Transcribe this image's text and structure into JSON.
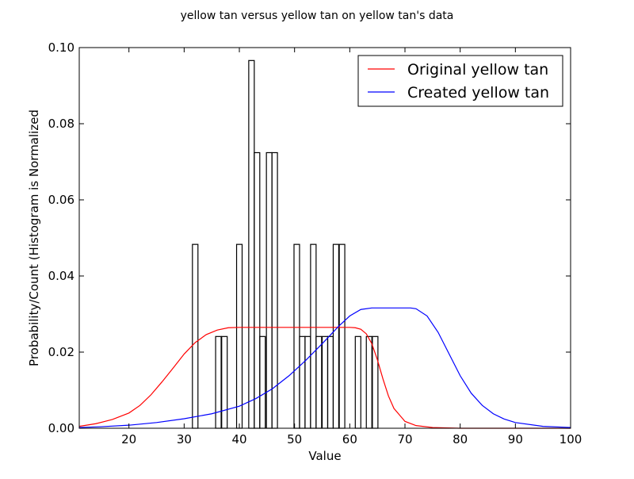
{
  "chart_data": {
    "type": "bar",
    "title": "yellow tan versus yellow tan on yellow tan's data",
    "xlabel": "Value",
    "ylabel": "Probability/Count (Histogram is Normalized",
    "xlim": [
      11,
      100
    ],
    "ylim": [
      0,
      0.1
    ],
    "xticks": [
      20,
      30,
      40,
      50,
      60,
      70,
      80,
      90,
      100
    ],
    "yticks": [
      "0.00",
      "0.02",
      "0.04",
      "0.06",
      "0.08",
      "0.10"
    ],
    "legend_position": "upper-right",
    "histogram": {
      "bin_width": 1.0,
      "bins": [
        {
          "x": 31.5,
          "value": 0.0483
        },
        {
          "x": 35.7,
          "value": 0.0241
        },
        {
          "x": 36.8,
          "value": 0.0241
        },
        {
          "x": 39.5,
          "value": 0.0483
        },
        {
          "x": 41.7,
          "value": 0.0966
        },
        {
          "x": 42.7,
          "value": 0.0724
        },
        {
          "x": 43.7,
          "value": 0.0241
        },
        {
          "x": 44.9,
          "value": 0.0724
        },
        {
          "x": 45.9,
          "value": 0.0724
        },
        {
          "x": 49.9,
          "value": 0.0483
        },
        {
          "x": 50.9,
          "value": 0.0241
        },
        {
          "x": 51.9,
          "value": 0.0241
        },
        {
          "x": 52.9,
          "value": 0.0483
        },
        {
          "x": 53.9,
          "value": 0.0241
        },
        {
          "x": 55.0,
          "value": 0.0241
        },
        {
          "x": 56.0,
          "value": 0.0241
        },
        {
          "x": 57.0,
          "value": 0.0483
        },
        {
          "x": 58.1,
          "value": 0.0483
        },
        {
          "x": 61.0,
          "value": 0.0241
        },
        {
          "x": 63.0,
          "value": 0.0241
        },
        {
          "x": 64.1,
          "value": 0.0241
        }
      ]
    },
    "series": [
      {
        "name": "Original yellow tan",
        "color": "#ff0000",
        "x": [
          11,
          14,
          17,
          20,
          22,
          24,
          26,
          28,
          30,
          32,
          34,
          36,
          38,
          40,
          42,
          44,
          50,
          55,
          60,
          61,
          62,
          63,
          64,
          65,
          66,
          67,
          68,
          70,
          72,
          75,
          80,
          90,
          100
        ],
        "y": [
          0.0005,
          0.0012,
          0.0023,
          0.004,
          0.006,
          0.0088,
          0.0122,
          0.0158,
          0.0195,
          0.0225,
          0.0246,
          0.0258,
          0.0264,
          0.0265,
          0.0265,
          0.0265,
          0.0265,
          0.0265,
          0.0265,
          0.0264,
          0.026,
          0.0248,
          0.0222,
          0.018,
          0.013,
          0.0085,
          0.0052,
          0.0018,
          0.0007,
          0.0002,
          0.0,
          0.0,
          0.0
        ]
      },
      {
        "name": "Created yellow tan",
        "color": "#0000ff",
        "x": [
          11,
          15,
          20,
          25,
          30,
          35,
          40,
          43,
          46,
          49,
          52,
          55,
          58,
          60,
          62,
          64,
          66,
          68,
          70,
          71,
          72,
          74,
          76,
          78,
          80,
          82,
          84,
          86,
          88,
          90,
          95,
          100
        ],
        "y": [
          0.0002,
          0.0004,
          0.0008,
          0.0015,
          0.0025,
          0.0038,
          0.0058,
          0.0078,
          0.0104,
          0.0138,
          0.0178,
          0.0222,
          0.0268,
          0.0295,
          0.0312,
          0.0316,
          0.0316,
          0.0316,
          0.0316,
          0.0316,
          0.0314,
          0.0295,
          0.0252,
          0.0195,
          0.0138,
          0.0092,
          0.006,
          0.0038,
          0.0024,
          0.0015,
          0.0005,
          0.0002
        ]
      }
    ]
  }
}
